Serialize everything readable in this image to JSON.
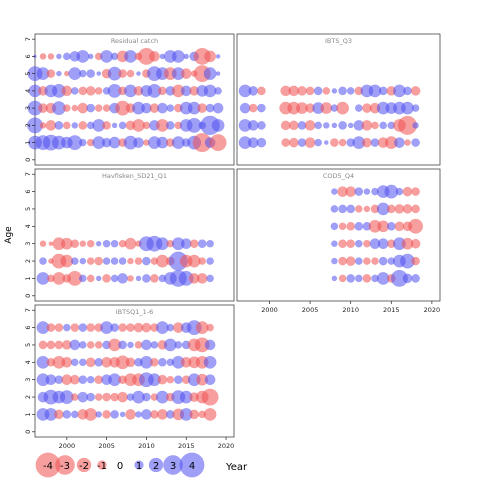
{
  "chart_data": {
    "type": "scatter",
    "subtype": "bubble residual plot",
    "ylabel": "Age",
    "legend_title": "Year",
    "legend_values": [
      -4,
      -3,
      -2,
      -1,
      0,
      1,
      2,
      3,
      4
    ],
    "legend_placement": "bottom-left",
    "colors": {
      "positive": "#5050f0",
      "negative": "#f05050",
      "frame": "#444444",
      "title": "#888888"
    },
    "x_ticks": [
      2000,
      2005,
      2010,
      2015,
      2020
    ],
    "y_ticks": [
      0,
      1,
      2,
      3,
      4,
      5,
      6,
      7
    ],
    "xlim": [
      1996,
      2021
    ],
    "ylim": [
      -0.3,
      7.3
    ],
    "panels": [
      {
        "title": "Residual catch",
        "years": [
          1996,
          2019
        ],
        "ages": [
          1,
          2,
          3,
          4,
          5,
          6
        ],
        "residuals": [
          [
            1.1,
            1.2,
            1.3,
            1.1,
            0.9,
            1.2,
            0.5,
            -0.5,
            1.0,
            0.7,
            0.9,
            -0.6,
            1.1,
            0.8,
            -0.4,
            1.0,
            0.9,
            -0.6,
            1.0,
            0.6,
            1.1,
            -1.6,
            0.8,
            -1.4
          ],
          [
            1.3,
            -0.4,
            -0.8,
            0.6,
            -0.5,
            0.4,
            -0.6,
            0.5,
            1.0,
            -0.6,
            0.3,
            0.5,
            -0.7,
            -1.0,
            -0.5,
            0.8,
            -1.0,
            0.6,
            -0.5,
            1.0,
            1.2,
            0.5,
            2.0,
            1.0
          ],
          [
            1.2,
            -0.7,
            -0.8,
            1.1,
            -0.5,
            -0.4,
            -0.8,
            0.6,
            -0.5,
            -0.5,
            0.8,
            -1.2,
            -0.7,
            1.0,
            0.8,
            -0.7,
            0.8,
            0.5,
            -0.6,
            1.0,
            1.0,
            -0.7,
            0.6,
            0.8
          ],
          [
            1.0,
            -0.7,
            1.0,
            1.1,
            -0.8,
            0.5,
            -0.6,
            -0.7,
            -0.5,
            0.5,
            1.1,
            -0.6,
            1.0,
            -0.7,
            0.9,
            1.1,
            -0.6,
            0.7,
            -1.0,
            0.8,
            -0.7,
            0.9,
            1.0,
            0.5
          ],
          [
            1.2,
            1.0,
            -0.6,
            0.3,
            -0.3,
            1.0,
            0.5,
            0.6,
            0.2,
            -0.7,
            1.1,
            -0.6,
            -0.5,
            0.2,
            -0.6,
            1.2,
            1.0,
            -1.0,
            1.0,
            -0.8,
            -0.4,
            -1.4,
            1.0,
            0.2
          ],
          [
            0.1,
            -0.4,
            -0.4,
            0.3,
            0.5,
            0.8,
            1.0,
            0.3,
            -0.5,
            1.0,
            0.5,
            -0.9,
            1.0,
            -0.5,
            -1.4,
            -0.8,
            0.3,
            1.0,
            1.0,
            0.3,
            0.7,
            -1.4,
            -0.9,
            0.2
          ]
        ]
      },
      {
        "title": "IBTS_Q3",
        "years": [
          1997,
          2018
        ],
        "ages": [
          1,
          2,
          3,
          4,
          5
        ],
        "residuals": [
          [
            1.0,
            0.8,
            0.7,
            null,
            null,
            -0.6,
            -0.7,
            0.6,
            -0.8,
            0.5,
            0.2,
            -0.6,
            -0.5,
            0.6,
            1.0,
            -0.7,
            0.6,
            -0.8,
            -1.0,
            0.8,
            -0.4,
            0.6
          ],
          [
            1.0,
            0.8,
            0.6,
            null,
            null,
            -0.7,
            -0.7,
            0.6,
            -0.8,
            0.5,
            0.4,
            0.3,
            0.6,
            0.3,
            0.8,
            -0.8,
            -0.5,
            0.5,
            0.5,
            -1.0,
            -1.6,
            0.4
          ],
          [
            0.8,
            -0.6,
            0.6,
            null,
            null,
            -1.0,
            -1.0,
            -0.9,
            -0.7,
            0.9,
            -0.9,
            0.5,
            -1.0,
            null,
            0.5,
            -0.7,
            -0.8,
            1.0,
            0.9,
            1.0,
            1.0,
            0.5
          ],
          [
            1.0,
            0.7,
            -0.6,
            null,
            null,
            -0.8,
            -0.8,
            -0.7,
            -0.6,
            0.6,
            -0.5,
            0.3,
            0.6,
            0.5,
            -0.6,
            1.0,
            1.0,
            0.6,
            -0.7,
            1.0,
            0.6,
            -0.7
          ],
          [
            null,
            null,
            null,
            null,
            null,
            null,
            null,
            null,
            null,
            null,
            null,
            null,
            null,
            null,
            null,
            null,
            null,
            null,
            null,
            null,
            null,
            null
          ]
        ]
      },
      {
        "title": "Havfisken_SD21_Q1",
        "years": [
          1997,
          2018
        ],
        "ages": [
          1,
          2,
          3
        ],
        "residuals": [
          [
            1.0,
            -0.5,
            -1.0,
            -0.6,
            -1.2,
            0.5,
            -0.5,
            0.3,
            -0.6,
            0.5,
            0.8,
            -0.4,
            0.3,
            0.6,
            -0.6,
            0.5,
            1.0,
            1.4,
            1.2,
            -0.8,
            -0.8,
            0.5
          ],
          [
            0.5,
            -0.3,
            -1.2,
            -1.0,
            0.5,
            0.4,
            -0.5,
            -0.6,
            0.5,
            0.5,
            0.5,
            -0.4,
            -0.5,
            0.6,
            -0.5,
            -1.0,
            -0.6,
            1.6,
            -1.0,
            -1.0,
            -0.5,
            0.5
          ],
          [
            -0.4,
            -0.2,
            -1.0,
            -0.9,
            -0.6,
            -0.4,
            -0.5,
            0.3,
            0.5,
            0.5,
            -0.5,
            -0.9,
            -0.4,
            1.2,
            1.3,
            1.0,
            -0.5,
            1.0,
            0.8,
            -0.6,
            0.6,
            0.5
          ]
        ]
      },
      {
        "title": "COD5_Q4",
        "years": [
          2008,
          2018
        ],
        "ages": [
          1,
          2,
          3,
          4,
          5,
          6
        ],
        "residuals": [
          [
            0.3,
            -0.5,
            0.6,
            0.5,
            -0.6,
            0.5,
            1.0,
            -0.6,
            1.4,
            0.7,
            0.6
          ],
          [
            0.4,
            -0.6,
            -0.7,
            0.5,
            -0.5,
            -0.5,
            0.6,
            0.5,
            1.0,
            1.2,
            -0.6
          ],
          [
            0.4,
            -0.6,
            -0.6,
            0.5,
            -0.5,
            0.8,
            0.8,
            -0.6,
            1.0,
            -0.9,
            -0.7
          ],
          [
            0.5,
            -0.5,
            -0.6,
            0.6,
            0.6,
            -1.0,
            -0.9,
            0.6,
            -0.7,
            -0.7,
            -1.2
          ],
          [
            0.5,
            0.6,
            0.6,
            -0.5,
            -0.4,
            -0.6,
            1.0,
            -0.6,
            -0.7,
            -0.7,
            -0.6
          ],
          [
            0.4,
            -0.8,
            -0.8,
            0.6,
            0.4,
            0.5,
            1.0,
            1.1,
            0.5,
            -0.7,
            -0.6
          ]
        ]
      },
      {
        "title": "IBTSQ1_1-6",
        "years": [
          1997,
          2018
        ],
        "ages": [
          1,
          2,
          3,
          4,
          5,
          6
        ],
        "residuals": [
          [
            1.0,
            1.0,
            -0.7,
            0.6,
            0.5,
            -0.8,
            -1.0,
            0.4,
            -0.6,
            0.6,
            0.3,
            -0.8,
            0.4,
            0.8,
            -0.6,
            -0.8,
            0.6,
            -0.9,
            1.0,
            -0.7,
            -0.5,
            -1.0
          ],
          [
            0.8,
            1.2,
            1.0,
            1.1,
            -0.5,
            0.8,
            0.6,
            -0.5,
            -0.6,
            -0.6,
            -0.8,
            0.5,
            1.0,
            0.6,
            -0.5,
            1.0,
            -0.6,
            1.1,
            1.0,
            -0.7,
            -1.0,
            -1.4
          ],
          [
            1.0,
            0.8,
            0.6,
            -0.8,
            -0.7,
            0.6,
            0.5,
            -0.6,
            0.8,
            1.0,
            -0.6,
            -1.0,
            -1.0,
            1.2,
            1.0,
            -0.7,
            -0.5,
            0.6,
            -0.6,
            1.0,
            -0.9,
            0.8
          ],
          [
            1.0,
            -0.6,
            -1.0,
            -0.8,
            0.5,
            0.5,
            -0.7,
            0.6,
            -0.8,
            -0.8,
            -1.1,
            -0.7,
            0.6,
            1.0,
            -0.6,
            0.6,
            0.5,
            1.0,
            -0.8,
            -0.9,
            -1.0,
            1.0
          ],
          [
            -0.6,
            -0.6,
            -0.6,
            -0.7,
            0.8,
            0.5,
            -0.5,
            -0.5,
            0.6,
            -1.0,
            0.6,
            0.4,
            -0.5,
            0.8,
            0.5,
            -0.7,
            1.0,
            0.5,
            0.6,
            -1.0,
            -1.2,
            0.8
          ],
          [
            1.0,
            -0.6,
            -0.6,
            0.5,
            -0.6,
            0.6,
            -0.6,
            -0.6,
            1.0,
            0.6,
            -0.6,
            -0.6,
            -0.7,
            -0.7,
            -0.6,
            1.0,
            0.5,
            -0.8,
            0.8,
            1.2,
            -1.0,
            -0.5
          ]
        ]
      }
    ]
  }
}
